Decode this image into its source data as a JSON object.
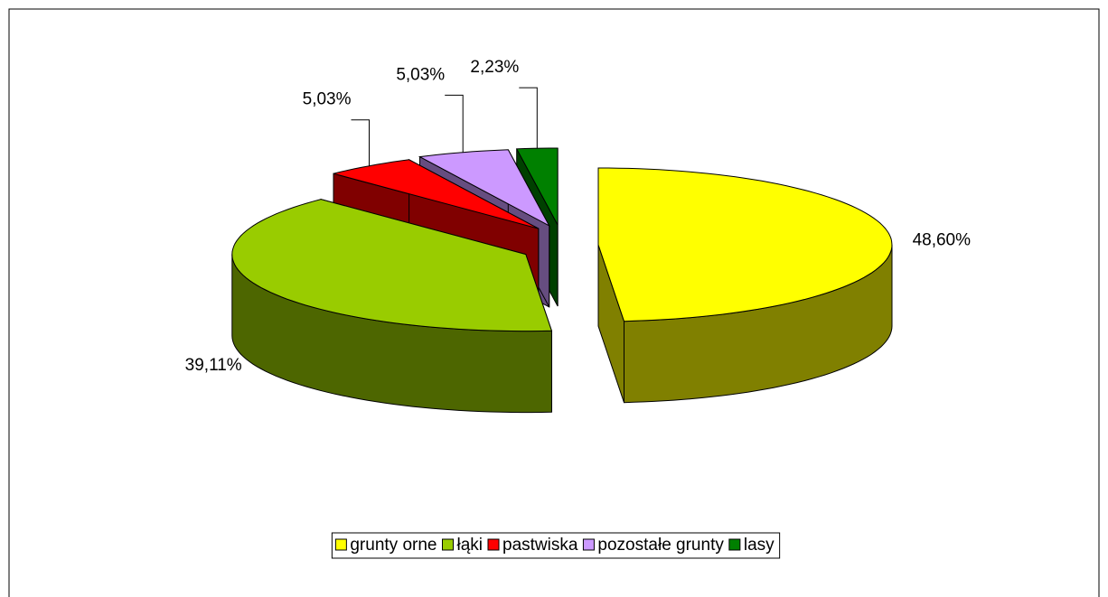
{
  "chart_data": {
    "type": "pie3d",
    "categories": [
      "grunty orne",
      "łąki",
      "pastwiska",
      "pozostałe grunty",
      "lasy"
    ],
    "values": [
      48.6,
      39.11,
      5.03,
      5.03,
      2.23
    ],
    "value_labels": [
      "48,60%",
      "39,11%",
      "5,03%",
      "5,03%",
      "2,23%"
    ],
    "colors": [
      "#ffff00",
      "#99cc00",
      "#ff0000",
      "#cc99ff",
      "#008000"
    ],
    "legend": "bottom"
  }
}
